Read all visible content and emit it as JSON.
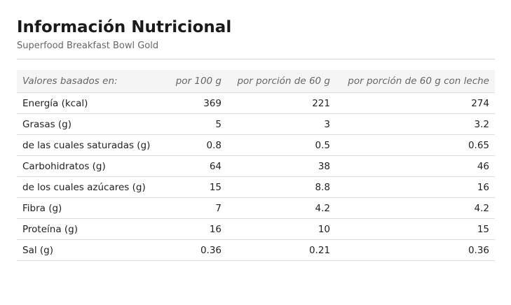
{
  "header": {
    "title": "Información Nutricional",
    "subtitle": "Superfood Breakfast Bowl Gold"
  },
  "table": {
    "columns": [
      "Valores basados en:",
      "por 100 g",
      "por porción de 60 g",
      "por porción de 60 g con leche"
    ],
    "rows": [
      [
        "Energía (kcal)",
        369,
        221,
        274
      ],
      [
        "Grasas (g)",
        5,
        3,
        3.2
      ],
      [
        "de las cuales saturadas (g)",
        0.8,
        0.5,
        0.65
      ],
      [
        "Carbohidratos (g)",
        64,
        38,
        46
      ],
      [
        "de los cuales azúcares (g)",
        15,
        8.8,
        16
      ],
      [
        "Fibra (g)",
        7,
        4.2,
        4.2
      ],
      [
        "Proteína (g)",
        16,
        10,
        15
      ],
      [
        "Sal (g)",
        0.36,
        0.21,
        0.36
      ]
    ]
  }
}
